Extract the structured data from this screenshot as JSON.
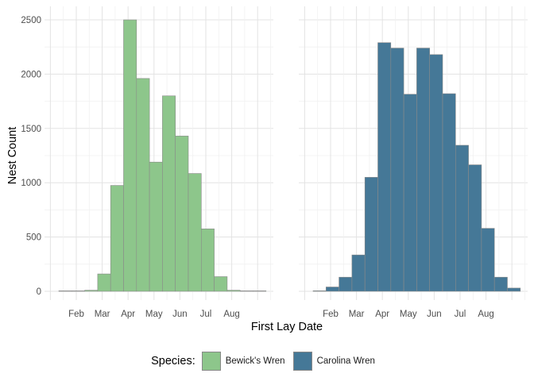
{
  "chart_data": {
    "type": "bar",
    "xlabel": "First Lay Date",
    "ylabel": "Nest Count",
    "ylim": [
      0,
      2600
    ],
    "yticks": [
      0,
      500,
      1000,
      1500,
      2000,
      2500
    ],
    "month_labels": [
      "Feb",
      "Mar",
      "Apr",
      "May",
      "Jun",
      "Jul",
      "Aug"
    ],
    "grid": true,
    "legend_position": "bottom",
    "legend_title": "Species:",
    "panels": [
      {
        "name": "Bewick's Wren",
        "color": "#8dc68b",
        "bins": [
          "Jan 5",
          "Jan 20",
          "Feb 5",
          "Feb 20",
          "Mar 5",
          "Mar 20",
          "Apr 5",
          "Apr 20",
          "May 5",
          "May 20",
          "Jun 5",
          "Jun 20",
          "Jul 5",
          "Jul 20",
          "Aug 5",
          "Aug 20"
        ],
        "values": [
          2,
          3,
          10,
          160,
          975,
          2500,
          1960,
          1190,
          1800,
          1430,
          1085,
          575,
          135,
          10,
          2,
          2
        ]
      },
      {
        "name": "Carolina Wren",
        "color": "#457897",
        "bins": [
          "Jan 20",
          "Feb 5",
          "Feb 20",
          "Mar 5",
          "Mar 20",
          "Apr 5",
          "Apr 20",
          "May 5",
          "May 20",
          "Jun 5",
          "Jun 20",
          "Jul 5",
          "Jul 20",
          "Aug 5",
          "Aug 20",
          "Sep 5"
        ],
        "values": [
          5,
          40,
          130,
          335,
          1050,
          2290,
          2240,
          1815,
          2240,
          2180,
          1820,
          1345,
          1165,
          580,
          130,
          30
        ]
      }
    ]
  },
  "legend": {
    "title": "Species:",
    "items": [
      {
        "label": "Bewick's Wren",
        "color": "#8dc68b"
      },
      {
        "label": "Carolina Wren",
        "color": "#457897"
      }
    ]
  }
}
